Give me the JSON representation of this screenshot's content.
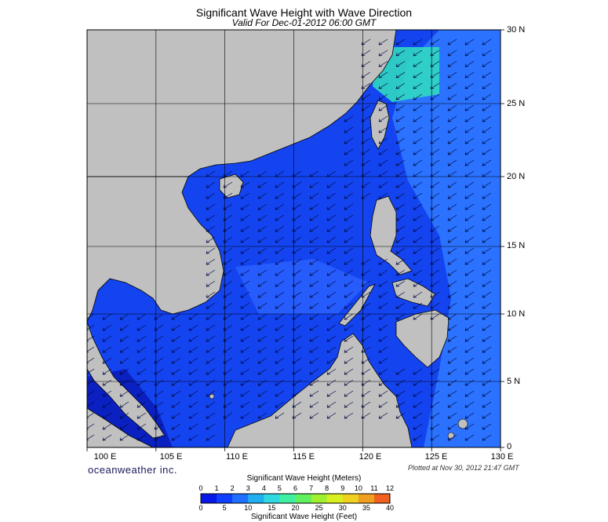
{
  "title": "Significant Wave Height with Wave Direction",
  "subtitle": "Valid For Dec-01-2012 06:00 GMT",
  "longitude_labels": [
    "100 E",
    "105 E",
    "110 E",
    "115 E",
    "120 E",
    "125 E",
    "130 E"
  ],
  "latitude_labels": [
    "30 N",
    "25 N",
    "20 N",
    "15 N",
    "10 N",
    "5 N",
    "0"
  ],
  "brand": "oceanweather inc.",
  "plotted": "Plotted at Nov 30, 2012 21:47 GMT",
  "colorbar": {
    "title_top": "Significant Wave Height (Meters)",
    "meters": [
      "0",
      "1",
      "2",
      "3",
      "4",
      "5",
      "6",
      "7",
      "8",
      "9",
      "10",
      "11",
      "12"
    ],
    "feet": [
      "0",
      "5",
      "10",
      "15",
      "20",
      "25",
      "30",
      "35",
      "40"
    ],
    "title_bottom": "Significant Wave Height (Feet)",
    "colors": [
      "#0818e8",
      "#1040ff",
      "#2070ff",
      "#20b0f0",
      "#30d8e0",
      "#40f0a0",
      "#60f060",
      "#a0f030",
      "#d8f020",
      "#f0d020",
      "#f0a020",
      "#f06020",
      "#e82020"
    ]
  },
  "colors": {
    "land": "#c0c0c0",
    "sea_deep": "#0a22d8",
    "sea_mid": "#1444f0",
    "sea_light": "#2a72ff"
  }
}
